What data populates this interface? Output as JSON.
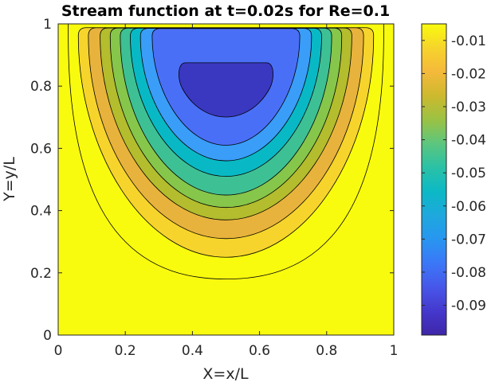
{
  "chart_data": {
    "type": "contour",
    "title": "Stream function at t=0.02s for Re=0.1",
    "xlabel": "X=x/L",
    "ylabel": "Y=y/L",
    "xlim": [
      0,
      1
    ],
    "ylim": [
      0,
      1
    ],
    "x_ticks": [
      "0",
      "0.2",
      "0.4",
      "0.6",
      "0.8",
      "1"
    ],
    "y_ticks": [
      "0",
      "0.2",
      "0.4",
      "0.6",
      "0.8",
      "1"
    ],
    "colorbar_ticks": [
      "-0.01",
      "-0.02",
      "-0.03",
      "-0.04",
      "-0.05",
      "-0.06",
      "-0.07",
      "-0.08",
      "-0.09"
    ],
    "colorbar_range": [
      -0.099,
      -0.005
    ],
    "levels": [
      {
        "value": -0.005,
        "color": "#f9fb0e",
        "x_range": [
          0.03,
          0.97
        ],
        "y_bottom": 0.18
      },
      {
        "value": -0.015,
        "color": "#f6d42b",
        "x_range": [
          0.06,
          0.94
        ],
        "y_bottom": 0.25
      },
      {
        "value": -0.025,
        "color": "#e8b33c",
        "x_range": [
          0.09,
          0.91
        ],
        "y_bottom": 0.31
      },
      {
        "value": -0.035,
        "color": "#b3bd2d",
        "x_range": [
          0.125,
          0.875
        ],
        "y_bottom": 0.37
      },
      {
        "value": -0.045,
        "color": "#86c64b",
        "x_range": [
          0.155,
          0.845
        ],
        "y_bottom": 0.41
      },
      {
        "value": -0.055,
        "color": "#3ec095",
        "x_range": [
          0.185,
          0.815
        ],
        "y_bottom": 0.45
      },
      {
        "value": -0.065,
        "color": "#08b9c5",
        "x_range": [
          0.215,
          0.785
        ],
        "y_bottom": 0.51
      },
      {
        "value": -0.075,
        "color": "#3a9df8",
        "x_range": [
          0.245,
          0.755
        ],
        "y_bottom": 0.56
      },
      {
        "value": -0.085,
        "color": "#4a6ff7",
        "x_range": [
          0.28,
          0.72
        ],
        "y_bottom": 0.61
      },
      {
        "value": -0.095,
        "color": "#3a37c0",
        "x_range": [
          0.36,
          0.64
        ],
        "y_bottom": 0.67
      }
    ],
    "colormap": "parula",
    "colormap_colors": [
      "#3e26a8",
      "#4538cd",
      "#4757e9",
      "#3b77f8",
      "#2896f0",
      "#1ea8dd",
      "#0cb9c5",
      "#2ac1a6",
      "#5cc67e",
      "#9bc243",
      "#cdb92e",
      "#f5b93b",
      "#f6d42b",
      "#f9fb0e"
    ]
  }
}
